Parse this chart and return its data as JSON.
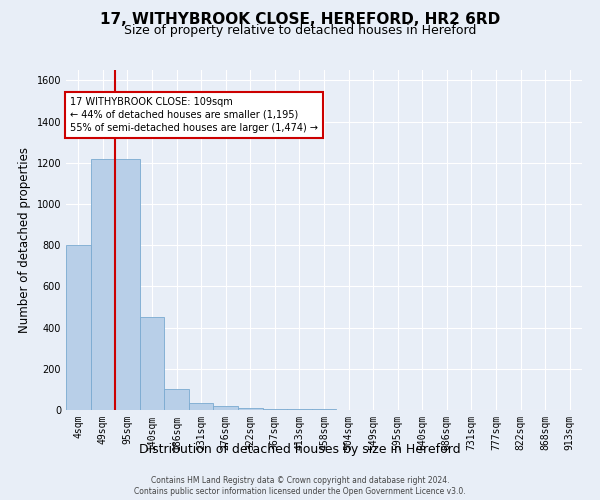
{
  "title": "17, WITHYBROOK CLOSE, HEREFORD, HR2 6RD",
  "subtitle": "Size of property relative to detached houses in Hereford",
  "xlabel": "Distribution of detached houses by size in Hereford",
  "ylabel": "Number of detached properties",
  "footer_line1": "Contains HM Land Registry data © Crown copyright and database right 2024.",
  "footer_line2": "Contains public sector information licensed under the Open Government Licence v3.0.",
  "categories": [
    "4sqm",
    "49sqm",
    "95sqm",
    "140sqm",
    "186sqm",
    "231sqm",
    "276sqm",
    "322sqm",
    "367sqm",
    "413sqm",
    "458sqm",
    "504sqm",
    "549sqm",
    "595sqm",
    "640sqm",
    "686sqm",
    "731sqm",
    "777sqm",
    "822sqm",
    "868sqm",
    "913sqm"
  ],
  "bar_values": [
    800,
    1220,
    1220,
    450,
    100,
    35,
    20,
    10,
    7,
    5,
    3,
    2,
    1,
    1,
    0,
    0,
    0,
    0,
    0,
    0,
    0
  ],
  "bar_color": "#b8cfe8",
  "bar_edgecolor": "#7aaad0",
  "red_line_index": 2,
  "annotation_text": "17 WITHYBROOK CLOSE: 109sqm\n← 44% of detached houses are smaller (1,195)\n55% of semi-detached houses are larger (1,474) →",
  "annotation_box_color": "#ffffff",
  "annotation_box_edgecolor": "#cc0000",
  "ylim": [
    0,
    1650
  ],
  "yticks": [
    0,
    200,
    400,
    600,
    800,
    1000,
    1200,
    1400,
    1600
  ],
  "background_color": "#e8eef7",
  "grid_color": "#ffffff",
  "title_fontsize": 11,
  "subtitle_fontsize": 9,
  "tick_fontsize": 7,
  "ylabel_fontsize": 8.5,
  "xlabel_fontsize": 9,
  "footer_fontsize": 5.5
}
